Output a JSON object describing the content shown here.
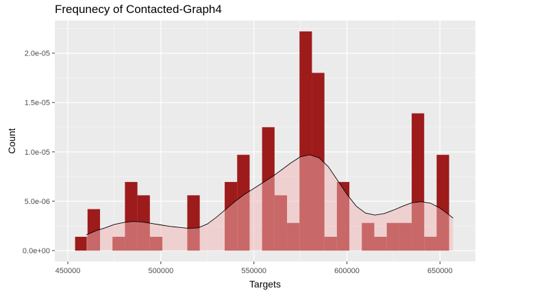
{
  "chart_data": {
    "type": "histogram",
    "title": "Frequnecy of Contacted-Graph4",
    "xlabel": "Targets",
    "ylabel": "Count",
    "xlim": [
      443000,
      669000
    ],
    "ylim": [
      -1.1e-06,
      2.33e-05
    ],
    "x_ticks": [
      450000,
      500000,
      550000,
      600000,
      650000
    ],
    "x_tick_labels": [
      "450000",
      "500000",
      "550000",
      "600000",
      "650000"
    ],
    "y_ticks": [
      0,
      5e-06,
      1e-05,
      1.5e-05,
      2e-05
    ],
    "y_tick_labels": [
      "0.0e+00",
      "5.0e-06",
      "1.0e-05",
      "1.5e-05",
      "2.0e-05"
    ],
    "grid": true,
    "bin_width": 6700,
    "bins": [
      {
        "x0": 453900,
        "x1": 460600,
        "count": 1.4e-06
      },
      {
        "x0": 460600,
        "x1": 467300,
        "count": 4.2e-06
      },
      {
        "x0": 467300,
        "x1": 474000,
        "count": 0
      },
      {
        "x0": 474000,
        "x1": 480700,
        "count": 1.4e-06
      },
      {
        "x0": 480700,
        "x1": 487400,
        "count": 6.95e-06
      },
      {
        "x0": 487400,
        "x1": 494100,
        "count": 5.6e-06
      },
      {
        "x0": 494100,
        "x1": 500800,
        "count": 1.4e-06
      },
      {
        "x0": 500800,
        "x1": 507500,
        "count": 0
      },
      {
        "x0": 507500,
        "x1": 514200,
        "count": 0
      },
      {
        "x0": 514200,
        "x1": 520900,
        "count": 5.6e-06
      },
      {
        "x0": 520900,
        "x1": 527600,
        "count": 0
      },
      {
        "x0": 527600,
        "x1": 534300,
        "count": 0
      },
      {
        "x0": 534300,
        "x1": 541000,
        "count": 6.95e-06
      },
      {
        "x0": 541000,
        "x1": 547700,
        "count": 9.7e-06
      },
      {
        "x0": 547700,
        "x1": 554400,
        "count": 0
      },
      {
        "x0": 554400,
        "x1": 561100,
        "count": 1.25e-05
      },
      {
        "x0": 561100,
        "x1": 567800,
        "count": 5.6e-06
      },
      {
        "x0": 567800,
        "x1": 574500,
        "count": 2.8e-06
      },
      {
        "x0": 574500,
        "x1": 581200,
        "count": 2.22e-05
      },
      {
        "x0": 581200,
        "x1": 587900,
        "count": 1.8e-05
      },
      {
        "x0": 587900,
        "x1": 594600,
        "count": 1.4e-06
      },
      {
        "x0": 594600,
        "x1": 601300,
        "count": 6.95e-06
      },
      {
        "x0": 601300,
        "x1": 608000,
        "count": 0
      },
      {
        "x0": 608000,
        "x1": 614700,
        "count": 2.8e-06
      },
      {
        "x0": 614700,
        "x1": 621400,
        "count": 1.4e-06
      },
      {
        "x0": 621400,
        "x1": 628100,
        "count": 2.8e-06
      },
      {
        "x0": 628100,
        "x1": 634800,
        "count": 2.8e-06
      },
      {
        "x0": 634800,
        "x1": 641500,
        "count": 1.39e-05
      },
      {
        "x0": 641500,
        "x1": 648200,
        "count": 1.4e-06
      },
      {
        "x0": 648200,
        "x1": 654900,
        "count": 9.7e-06
      }
    ],
    "density": {
      "x": [
        460000,
        465000,
        470000,
        475000,
        480000,
        485000,
        490000,
        495000,
        500000,
        505000,
        510000,
        515000,
        520000,
        525000,
        530000,
        535000,
        540000,
        545000,
        550000,
        555000,
        560000,
        565000,
        570000,
        575000,
        580000,
        585000,
        590000,
        595000,
        600000,
        605000,
        610000,
        615000,
        620000,
        625000,
        630000,
        635000,
        640000,
        645000,
        650000,
        655000,
        657000
      ],
      "y": [
        1.6e-06,
        2e-06,
        2.3e-06,
        2.65e-06,
        2.85e-06,
        2.95e-06,
        2.9e-06,
        2.75e-06,
        2.6e-06,
        2.45e-06,
        2.35e-06,
        2.25e-06,
        2.3e-06,
        2.7e-06,
        3.4e-06,
        4.2e-06,
        5e-06,
        5.7e-06,
        6.3e-06,
        6.9e-06,
        7.5e-06,
        8.2e-06,
        8.9e-06,
        9.5e-06,
        9.7e-06,
        9.4e-06,
        8.5e-06,
        7.1e-06,
        5.7e-06,
        4.5e-06,
        3.8e-06,
        3.6e-06,
        3.75e-06,
        4.1e-06,
        4.5e-06,
        4.85e-06,
        4.95e-06,
        4.8e-06,
        4.3e-06,
        3.6e-06,
        3.3e-06
      ]
    },
    "colors": {
      "panel_background": "#ebebeb",
      "grid_major": "#ffffff",
      "bar_fill": "#9e1b1b",
      "density_fill": "#f4b6b6",
      "density_line": "#000000"
    }
  }
}
